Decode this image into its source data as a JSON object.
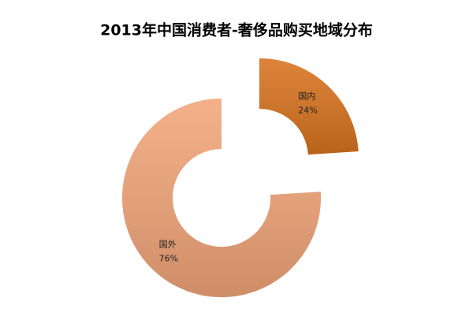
{
  "chart_data": {
    "type": "pie",
    "title": "2013年中国消费者-奢侈品购买地域分布",
    "categories": [
      "国内",
      "国外"
    ],
    "values": [
      24,
      76
    ],
    "value_labels": [
      "24%",
      "76%"
    ],
    "colors": [
      "#d8731f",
      "#f2a679"
    ],
    "donut": true,
    "exploded": [
      true,
      false
    ]
  }
}
